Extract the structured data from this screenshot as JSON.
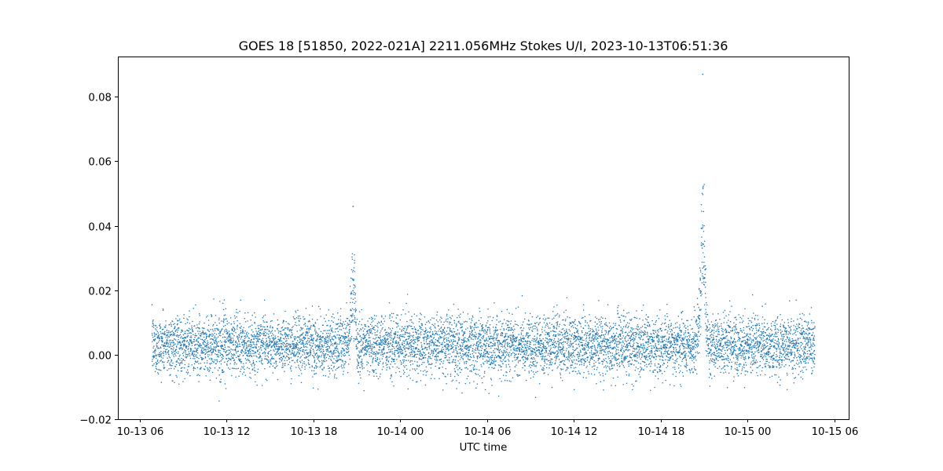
{
  "chart_data": {
    "type": "scatter",
    "title": "GOES 18 [51850, 2022-021A] 2211.056MHz Stokes U/I, 2023-10-13T06:51:36",
    "xlabel": "UTC time",
    "ylabel": "",
    "xlim": [
      "2023-10-13T04:30",
      "2023-10-15T07:00"
    ],
    "ylim": [
      -0.02,
      0.0925
    ],
    "grid": false,
    "marker_color": "#1f77b4",
    "x_ticks": [
      {
        "t": "2023-10-13T06:00",
        "label": "10-13 06"
      },
      {
        "t": "2023-10-13T12:00",
        "label": "10-13 12"
      },
      {
        "t": "2023-10-13T18:00",
        "label": "10-13 18"
      },
      {
        "t": "2023-10-14T00:00",
        "label": "10-14 00"
      },
      {
        "t": "2023-10-14T06:00",
        "label": "10-14 06"
      },
      {
        "t": "2023-10-14T12:00",
        "label": "10-14 12"
      },
      {
        "t": "2023-10-14T18:00",
        "label": "10-14 18"
      },
      {
        "t": "2023-10-15T00:00",
        "label": "10-15 00"
      },
      {
        "t": "2023-10-15T06:00",
        "label": "10-15 06"
      }
    ],
    "y_ticks": [
      {
        "v": -0.02,
        "label": "−0.02"
      },
      {
        "v": 0.0,
        "label": "0.00"
      },
      {
        "v": 0.02,
        "label": "0.02"
      },
      {
        "v": 0.04,
        "label": "0.04"
      },
      {
        "v": 0.06,
        "label": "0.06"
      },
      {
        "v": 0.08,
        "label": "0.08"
      }
    ],
    "series": [
      {
        "x_start": "2023-10-13T06:51:36",
        "x_end": "2023-10-15T04:40",
        "baseline": 0.003,
        "scatter": 0.0045,
        "sampling_seconds": 20,
        "peaks": [
          {
            "t": "2023-10-13T20:45",
            "value": 0.046
          },
          {
            "t": "2023-10-14T20:55",
            "value": 0.087
          }
        ]
      }
    ]
  }
}
